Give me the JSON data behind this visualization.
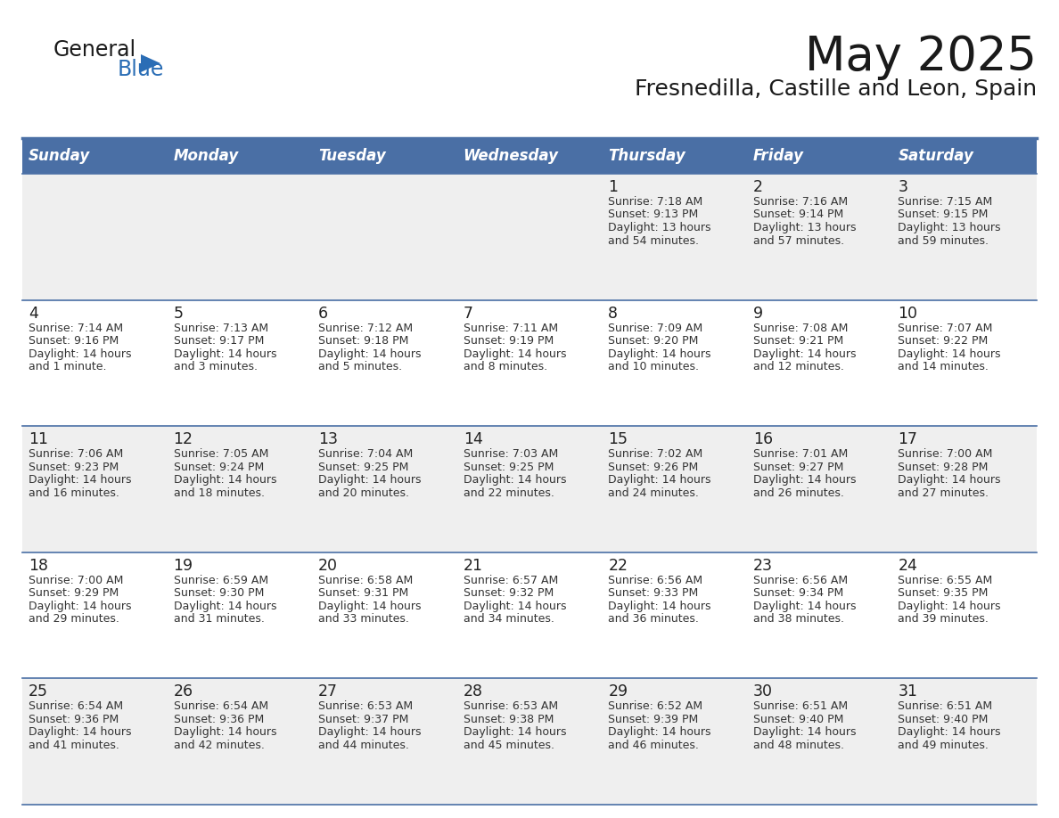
{
  "title": "May 2025",
  "subtitle": "Fresnedilla, Castille and Leon, Spain",
  "days_of_week": [
    "Sunday",
    "Monday",
    "Tuesday",
    "Wednesday",
    "Thursday",
    "Friday",
    "Saturday"
  ],
  "header_bg": "#4a6fa5",
  "header_text": "#ffffff",
  "cell_bg_odd": "#efefef",
  "cell_bg_even": "#ffffff",
  "divider_color": "#4a6fa5",
  "day_num_color": "#222222",
  "text_color": "#333333",
  "background": "#ffffff",
  "logo_general_color": "#1a1a1a",
  "logo_blue_color": "#2a6db5",
  "title_color": "#1a1a1a",
  "weeks": [
    [
      {
        "day": null,
        "sunrise": null,
        "sunset": null,
        "daylight": null
      },
      {
        "day": null,
        "sunrise": null,
        "sunset": null,
        "daylight": null
      },
      {
        "day": null,
        "sunrise": null,
        "sunset": null,
        "daylight": null
      },
      {
        "day": null,
        "sunrise": null,
        "sunset": null,
        "daylight": null
      },
      {
        "day": 1,
        "sunrise": "7:18 AM",
        "sunset": "9:13 PM",
        "daylight": "13 hours and 54 minutes."
      },
      {
        "day": 2,
        "sunrise": "7:16 AM",
        "sunset": "9:14 PM",
        "daylight": "13 hours and 57 minutes."
      },
      {
        "day": 3,
        "sunrise": "7:15 AM",
        "sunset": "9:15 PM",
        "daylight": "13 hours and 59 minutes."
      }
    ],
    [
      {
        "day": 4,
        "sunrise": "7:14 AM",
        "sunset": "9:16 PM",
        "daylight": "14 hours and 1 minute."
      },
      {
        "day": 5,
        "sunrise": "7:13 AM",
        "sunset": "9:17 PM",
        "daylight": "14 hours and 3 minutes."
      },
      {
        "day": 6,
        "sunrise": "7:12 AM",
        "sunset": "9:18 PM",
        "daylight": "14 hours and 5 minutes."
      },
      {
        "day": 7,
        "sunrise": "7:11 AM",
        "sunset": "9:19 PM",
        "daylight": "14 hours and 8 minutes."
      },
      {
        "day": 8,
        "sunrise": "7:09 AM",
        "sunset": "9:20 PM",
        "daylight": "14 hours and 10 minutes."
      },
      {
        "day": 9,
        "sunrise": "7:08 AM",
        "sunset": "9:21 PM",
        "daylight": "14 hours and 12 minutes."
      },
      {
        "day": 10,
        "sunrise": "7:07 AM",
        "sunset": "9:22 PM",
        "daylight": "14 hours and 14 minutes."
      }
    ],
    [
      {
        "day": 11,
        "sunrise": "7:06 AM",
        "sunset": "9:23 PM",
        "daylight": "14 hours and 16 minutes."
      },
      {
        "day": 12,
        "sunrise": "7:05 AM",
        "sunset": "9:24 PM",
        "daylight": "14 hours and 18 minutes."
      },
      {
        "day": 13,
        "sunrise": "7:04 AM",
        "sunset": "9:25 PM",
        "daylight": "14 hours and 20 minutes."
      },
      {
        "day": 14,
        "sunrise": "7:03 AM",
        "sunset": "9:25 PM",
        "daylight": "14 hours and 22 minutes."
      },
      {
        "day": 15,
        "sunrise": "7:02 AM",
        "sunset": "9:26 PM",
        "daylight": "14 hours and 24 minutes."
      },
      {
        "day": 16,
        "sunrise": "7:01 AM",
        "sunset": "9:27 PM",
        "daylight": "14 hours and 26 minutes."
      },
      {
        "day": 17,
        "sunrise": "7:00 AM",
        "sunset": "9:28 PM",
        "daylight": "14 hours and 27 minutes."
      }
    ],
    [
      {
        "day": 18,
        "sunrise": "7:00 AM",
        "sunset": "9:29 PM",
        "daylight": "14 hours and 29 minutes."
      },
      {
        "day": 19,
        "sunrise": "6:59 AM",
        "sunset": "9:30 PM",
        "daylight": "14 hours and 31 minutes."
      },
      {
        "day": 20,
        "sunrise": "6:58 AM",
        "sunset": "9:31 PM",
        "daylight": "14 hours and 33 minutes."
      },
      {
        "day": 21,
        "sunrise": "6:57 AM",
        "sunset": "9:32 PM",
        "daylight": "14 hours and 34 minutes."
      },
      {
        "day": 22,
        "sunrise": "6:56 AM",
        "sunset": "9:33 PM",
        "daylight": "14 hours and 36 minutes."
      },
      {
        "day": 23,
        "sunrise": "6:56 AM",
        "sunset": "9:34 PM",
        "daylight": "14 hours and 38 minutes."
      },
      {
        "day": 24,
        "sunrise": "6:55 AM",
        "sunset": "9:35 PM",
        "daylight": "14 hours and 39 minutes."
      }
    ],
    [
      {
        "day": 25,
        "sunrise": "6:54 AM",
        "sunset": "9:36 PM",
        "daylight": "14 hours and 41 minutes."
      },
      {
        "day": 26,
        "sunrise": "6:54 AM",
        "sunset": "9:36 PM",
        "daylight": "14 hours and 42 minutes."
      },
      {
        "day": 27,
        "sunrise": "6:53 AM",
        "sunset": "9:37 PM",
        "daylight": "14 hours and 44 minutes."
      },
      {
        "day": 28,
        "sunrise": "6:53 AM",
        "sunset": "9:38 PM",
        "daylight": "14 hours and 45 minutes."
      },
      {
        "day": 29,
        "sunrise": "6:52 AM",
        "sunset": "9:39 PM",
        "daylight": "14 hours and 46 minutes."
      },
      {
        "day": 30,
        "sunrise": "6:51 AM",
        "sunset": "9:40 PM",
        "daylight": "14 hours and 48 minutes."
      },
      {
        "day": 31,
        "sunrise": "6:51 AM",
        "sunset": "9:40 PM",
        "daylight": "14 hours and 49 minutes."
      }
    ]
  ]
}
